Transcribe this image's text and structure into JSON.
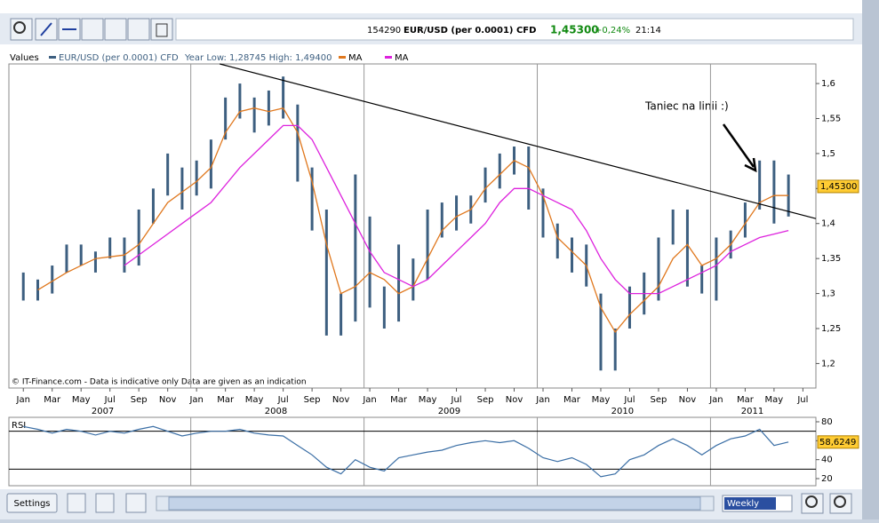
{
  "ui": {
    "header": {
      "id": "154290",
      "instrument": "EUR/USD (per 0.0001) CFD",
      "price": "1,45300",
      "change": "+0,24%",
      "time": "21:14"
    },
    "buttons": {
      "settings": "Settings",
      "period": "Weekly"
    }
  },
  "chart_data": {
    "type": "ohlc",
    "legend_title": "Values",
    "info": "Year Low: 1,28745 High: 1,49400",
    "footnote": "© IT-Finance.com - Data is indicative only Data are given as an indication",
    "annotation": "Taniec na linii :)",
    "xlim": [
      -1,
      54.9
    ],
    "ylim": [
      1.165,
      1.628
    ],
    "xticks": [
      {
        "value": 0,
        "label": "Jan"
      },
      {
        "value": 2,
        "label": "Mar"
      },
      {
        "value": 4,
        "label": "May"
      },
      {
        "value": 6,
        "label": "Jul"
      },
      {
        "value": 8,
        "label": "Sep"
      },
      {
        "value": 10,
        "label": "Nov"
      },
      {
        "value": 12,
        "label": "Jan"
      },
      {
        "value": 14,
        "label": "Mar"
      },
      {
        "value": 16,
        "label": "May"
      },
      {
        "value": 18,
        "label": "Jul"
      },
      {
        "value": 20,
        "label": "Sep"
      },
      {
        "value": 22,
        "label": "Nov"
      },
      {
        "value": 24,
        "label": "Jan"
      },
      {
        "value": 26,
        "label": "Mar"
      },
      {
        "value": 28,
        "label": "May"
      },
      {
        "value": 30,
        "label": "Jul"
      },
      {
        "value": 32,
        "label": "Sep"
      },
      {
        "value": 34,
        "label": "Nov"
      },
      {
        "value": 36,
        "label": "Jan"
      },
      {
        "value": 38,
        "label": "Mar"
      },
      {
        "value": 40,
        "label": "May"
      },
      {
        "value": 42,
        "label": "Jul"
      },
      {
        "value": 44,
        "label": "Sep"
      },
      {
        "value": 46,
        "label": "Nov"
      },
      {
        "value": 48,
        "label": "Jan"
      },
      {
        "value": 50,
        "label": "Mar"
      },
      {
        "value": 52,
        "label": "May"
      },
      {
        "value": 54,
        "label": "Jul"
      }
    ],
    "year_labels": [
      {
        "value": 5.5,
        "label": "2007"
      },
      {
        "value": 17.5,
        "label": "2008"
      },
      {
        "value": 29.5,
        "label": "2009"
      },
      {
        "value": 41.5,
        "label": "2010"
      },
      {
        "value": 50.5,
        "label": "2011"
      }
    ],
    "vgrid": [
      11.6,
      23.6,
      35.6,
      47.6
    ],
    "yticks": [
      {
        "value": 1.2,
        "label": "1,2"
      },
      {
        "value": 1.25,
        "label": "1,25"
      },
      {
        "value": 1.3,
        "label": "1,3"
      },
      {
        "value": 1.35,
        "label": "1,35"
      },
      {
        "value": 1.4,
        "label": "1,4"
      },
      {
        "value": 1.45,
        "label": "1,45"
      },
      {
        "value": 1.5,
        "label": "1,5"
      },
      {
        "value": 1.55,
        "label": "1,55"
      },
      {
        "value": 1.6,
        "label": "1,6"
      }
    ],
    "series": [
      {
        "name": "EUR/USD (per 0.0001) CFD",
        "color": "#3d5f80",
        "x": [
          0,
          1,
          2,
          3,
          4,
          5,
          6,
          7,
          8,
          9,
          10,
          11,
          12,
          13,
          14,
          15,
          16,
          17,
          18,
          19,
          20,
          21,
          22,
          23,
          24,
          25,
          26,
          27,
          28,
          29,
          30,
          31,
          32,
          33,
          34,
          35,
          36,
          37,
          38,
          39,
          40,
          41,
          42,
          43,
          44,
          45,
          46,
          47,
          48,
          49,
          50,
          51,
          52,
          53
        ],
        "high": [
          1.33,
          1.32,
          1.34,
          1.37,
          1.37,
          1.36,
          1.38,
          1.38,
          1.42,
          1.45,
          1.5,
          1.48,
          1.49,
          1.52,
          1.58,
          1.6,
          1.58,
          1.59,
          1.61,
          1.57,
          1.48,
          1.42,
          1.3,
          1.47,
          1.41,
          1.31,
          1.37,
          1.35,
          1.42,
          1.43,
          1.44,
          1.44,
          1.48,
          1.5,
          1.51,
          1.51,
          1.45,
          1.4,
          1.38,
          1.37,
          1.3,
          1.25,
          1.31,
          1.33,
          1.38,
          1.42,
          1.42,
          1.34,
          1.38,
          1.39,
          1.43,
          1.49,
          1.49,
          1.47
        ],
        "low": [
          1.29,
          1.29,
          1.3,
          1.33,
          1.34,
          1.33,
          1.35,
          1.33,
          1.34,
          1.4,
          1.44,
          1.42,
          1.44,
          1.45,
          1.52,
          1.55,
          1.53,
          1.54,
          1.55,
          1.46,
          1.39,
          1.24,
          1.24,
          1.26,
          1.28,
          1.25,
          1.26,
          1.29,
          1.32,
          1.38,
          1.39,
          1.4,
          1.43,
          1.45,
          1.47,
          1.42,
          1.38,
          1.35,
          1.33,
          1.31,
          1.19,
          1.19,
          1.25,
          1.27,
          1.29,
          1.37,
          1.31,
          1.3,
          1.29,
          1.35,
          1.38,
          1.42,
          1.4,
          1.41
        ]
      }
    ],
    "lines": [
      {
        "name": "MA",
        "color": "#e0781e",
        "x": [
          1,
          3,
          5,
          7,
          8,
          10,
          12,
          13,
          14,
          15,
          16,
          17,
          18,
          19,
          20,
          21,
          22,
          23,
          24,
          25,
          26,
          27,
          28,
          29,
          30,
          31,
          32,
          33,
          34,
          35,
          36,
          37,
          38,
          39,
          40,
          41,
          42,
          43,
          44,
          45,
          46,
          47,
          48,
          49,
          50,
          51,
          52,
          53
        ],
        "values": [
          1.305,
          1.33,
          1.35,
          1.355,
          1.37,
          1.43,
          1.46,
          1.48,
          1.53,
          1.56,
          1.565,
          1.56,
          1.565,
          1.53,
          1.46,
          1.37,
          1.3,
          1.31,
          1.33,
          1.32,
          1.3,
          1.31,
          1.35,
          1.39,
          1.41,
          1.42,
          1.45,
          1.47,
          1.49,
          1.48,
          1.44,
          1.38,
          1.36,
          1.34,
          1.28,
          1.245,
          1.27,
          1.29,
          1.31,
          1.35,
          1.37,
          1.34,
          1.35,
          1.37,
          1.4,
          1.43,
          1.44,
          1.44
        ]
      },
      {
        "name": "MA",
        "color": "#dd22dd",
        "x": [
          7,
          9,
          11,
          13,
          15,
          17,
          18,
          19,
          20,
          21,
          22,
          23,
          24,
          25,
          26,
          27,
          28,
          29,
          30,
          31,
          32,
          33,
          34,
          35,
          36,
          37,
          38,
          39,
          40,
          41,
          42,
          43,
          44,
          45,
          46,
          47,
          48,
          49,
          50,
          51,
          52,
          53
        ],
        "values": [
          1.34,
          1.37,
          1.4,
          1.43,
          1.48,
          1.52,
          1.54,
          1.54,
          1.52,
          1.48,
          1.44,
          1.4,
          1.36,
          1.33,
          1.32,
          1.31,
          1.32,
          1.34,
          1.36,
          1.38,
          1.4,
          1.43,
          1.45,
          1.45,
          1.44,
          1.43,
          1.42,
          1.39,
          1.35,
          1.32,
          1.3,
          1.3,
          1.3,
          1.31,
          1.32,
          1.33,
          1.34,
          1.36,
          1.37,
          1.38,
          1.385,
          1.39
        ]
      }
    ],
    "trendline": {
      "color": "#000000",
      "x": [
        13.6,
        54.9
      ],
      "y": [
        1.628,
        1.407
      ]
    },
    "last_price": {
      "value": 1.453,
      "label": "1,45300"
    },
    "rsi": {
      "title": "RSI",
      "color": "#3a6ea5",
      "x": [
        0,
        1,
        2,
        3,
        4,
        5,
        6,
        7,
        8,
        9,
        10,
        11,
        12,
        13,
        14,
        15,
        16,
        17,
        18,
        19,
        20,
        21,
        22,
        23,
        24,
        25,
        26,
        27,
        28,
        29,
        30,
        31,
        32,
        33,
        34,
        35,
        36,
        37,
        38,
        39,
        40,
        41,
        42,
        43,
        44,
        45,
        46,
        47,
        48,
        49,
        50,
        51,
        52,
        53
      ],
      "values": [
        75,
        72,
        68,
        72,
        70,
        66,
        70,
        68,
        72,
        75,
        70,
        65,
        68,
        70,
        70,
        72,
        68,
        66,
        65,
        55,
        45,
        32,
        25,
        40,
        32,
        28,
        42,
        45,
        48,
        50,
        55,
        58,
        60,
        58,
        60,
        52,
        42,
        38,
        42,
        35,
        22,
        25,
        40,
        45,
        55,
        62,
        55,
        45,
        55,
        62,
        65,
        72,
        55,
        58.6249
      ],
      "ylim": [
        12.5,
        84.7
      ],
      "yticks": [
        20,
        40,
        60,
        80
      ],
      "levels": [
        30,
        70
      ],
      "last": {
        "value": 58.6249,
        "label": "58,6249"
      }
    }
  }
}
